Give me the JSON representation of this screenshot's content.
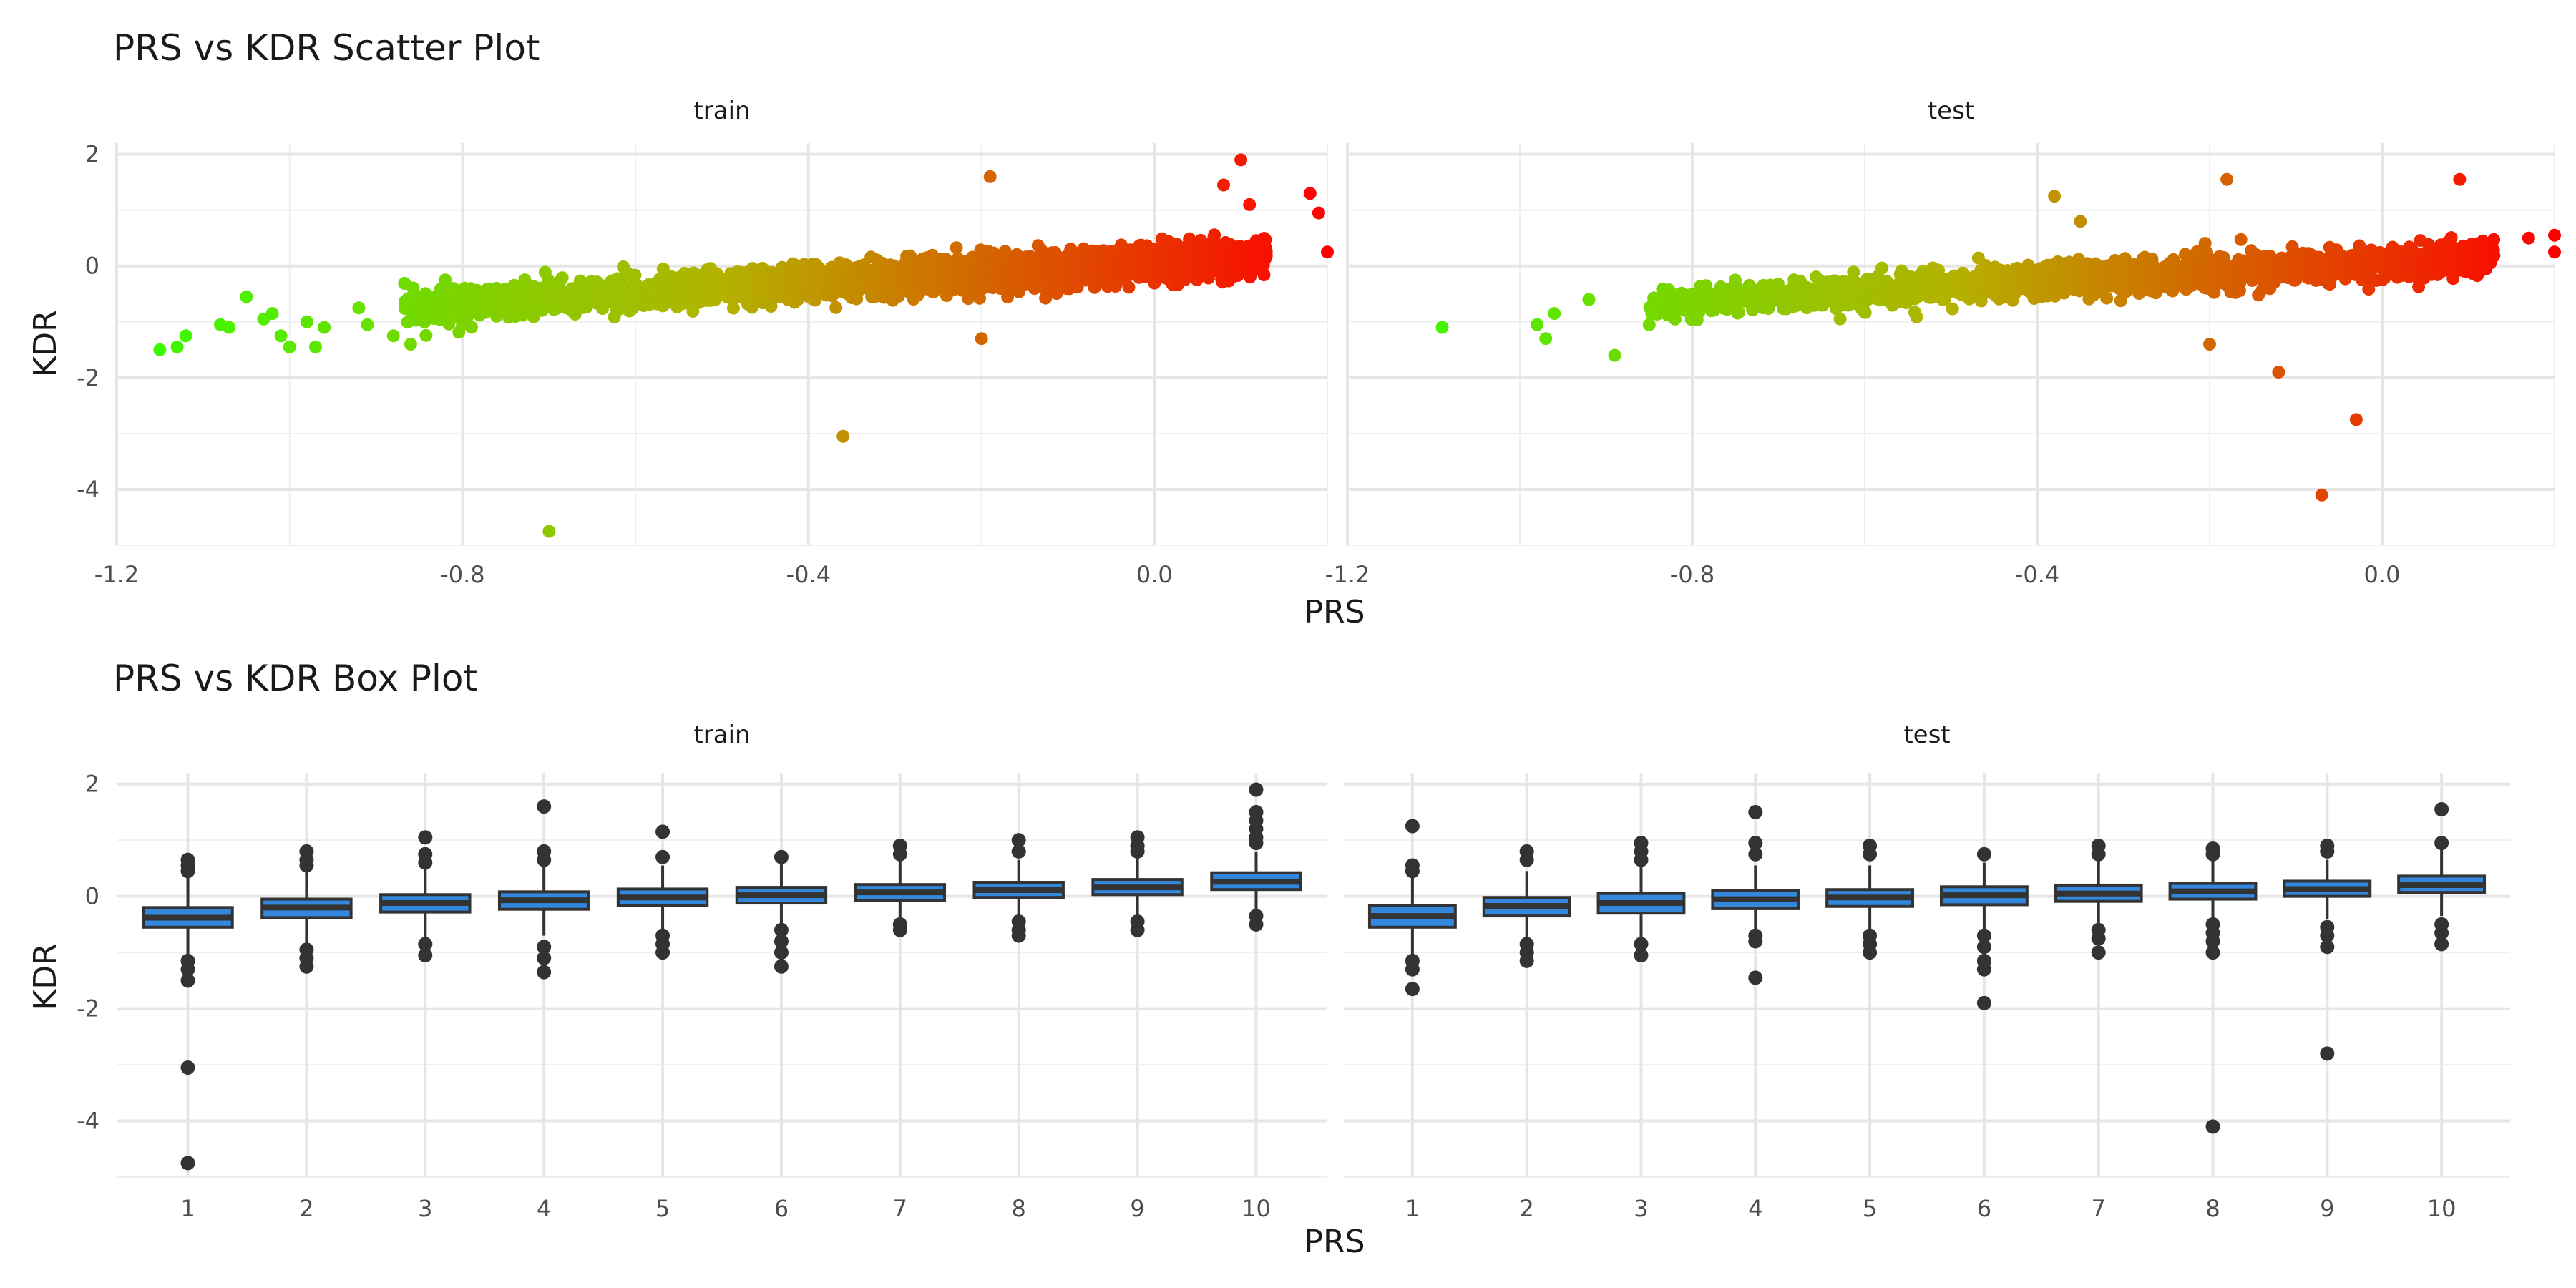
{
  "chart_data": [
    {
      "type": "scatter",
      "title": "PRS vs KDR Scatter Plot",
      "xlabel": "PRS",
      "ylabel": "KDR",
      "xlim": [
        -1.2,
        0.2
      ],
      "ylim": [
        -5,
        2.2
      ],
      "xticks": [
        -1.2,
        -0.8,
        -0.4,
        0.0
      ],
      "xtick_labels": [
        "-1.2",
        "-0.8",
        "-0.4",
        "0.0"
      ],
      "yticks": [
        -4,
        -2,
        0,
        2
      ],
      "ytick_labels": [
        "-4",
        "-2",
        "0",
        "2"
      ],
      "grid": true,
      "legend": "none",
      "color_scale": {
        "low": "#33ff00",
        "mid": "#b3b300",
        "high": "#ff0000",
        "variable": "PRS"
      },
      "panels": [
        {
          "name": "train",
          "cloud": {
            "x_range": [
              -0.87,
              0.13
            ],
            "slope": 0.9,
            "intercept": 0.05,
            "spread": 0.28,
            "n": 2400
          },
          "outliers": [
            {
              "x": -1.15,
              "y": -1.5
            },
            {
              "x": -1.13,
              "y": -1.45
            },
            {
              "x": -1.12,
              "y": -1.25
            },
            {
              "x": -1.08,
              "y": -1.05
            },
            {
              "x": -1.07,
              "y": -1.1
            },
            {
              "x": -1.05,
              "y": -0.55
            },
            {
              "x": -1.03,
              "y": -0.95
            },
            {
              "x": -1.02,
              "y": -0.85
            },
            {
              "x": -1.01,
              "y": -1.25
            },
            {
              "x": -1.0,
              "y": -1.45
            },
            {
              "x": -0.98,
              "y": -1.0
            },
            {
              "x": -0.97,
              "y": -1.45
            },
            {
              "x": -0.96,
              "y": -1.1
            },
            {
              "x": -0.92,
              "y": -0.75
            },
            {
              "x": -0.91,
              "y": -1.05
            },
            {
              "x": -0.88,
              "y": -1.25
            },
            {
              "x": -0.86,
              "y": -1.4
            },
            {
              "x": -0.82,
              "y": -0.25
            },
            {
              "x": -0.7,
              "y": -4.75
            },
            {
              "x": -0.36,
              "y": -3.05
            },
            {
              "x": -0.19,
              "y": 1.6
            },
            {
              "x": -0.2,
              "y": -1.3
            },
            {
              "x": 0.08,
              "y": 1.45
            },
            {
              "x": 0.1,
              "y": 1.9
            },
            {
              "x": 0.11,
              "y": 1.1
            },
            {
              "x": 0.18,
              "y": 1.3
            },
            {
              "x": 0.19,
              "y": 0.95
            },
            {
              "x": 0.2,
              "y": 0.25
            }
          ]
        },
        {
          "name": "test",
          "cloud": {
            "x_range": [
              -0.85,
              0.13
            ],
            "slope": 0.85,
            "intercept": 0.05,
            "spread": 0.27,
            "n": 1600
          },
          "outliers": [
            {
              "x": -1.09,
              "y": -1.1
            },
            {
              "x": -0.98,
              "y": -1.05
            },
            {
              "x": -0.97,
              "y": -1.3
            },
            {
              "x": -0.96,
              "y": -0.85
            },
            {
              "x": -0.92,
              "y": -0.6
            },
            {
              "x": -0.89,
              "y": -1.6
            },
            {
              "x": -0.85,
              "y": -1.05
            },
            {
              "x": -0.82,
              "y": -0.95
            },
            {
              "x": -0.38,
              "y": 1.25
            },
            {
              "x": -0.35,
              "y": 0.8
            },
            {
              "x": -0.18,
              "y": 1.55
            },
            {
              "x": -0.2,
              "y": -1.4
            },
            {
              "x": -0.12,
              "y": -1.9
            },
            {
              "x": -0.03,
              "y": -2.75
            },
            {
              "x": -0.07,
              "y": -4.1
            },
            {
              "x": 0.09,
              "y": 1.55
            },
            {
              "x": 0.17,
              "y": 0.5
            },
            {
              "x": 0.2,
              "y": 0.55
            },
            {
              "x": 0.2,
              "y": 0.25
            }
          ]
        }
      ]
    },
    {
      "type": "box",
      "title": "PRS vs KDR Box Plot",
      "xlabel": "PRS",
      "ylabel": "KDR",
      "categories": [
        "1",
        "2",
        "3",
        "4",
        "5",
        "6",
        "7",
        "8",
        "9",
        "10"
      ],
      "ylim": [
        -5,
        2.2
      ],
      "yticks": [
        -4,
        -2,
        0,
        2
      ],
      "ytick_labels": [
        "-4",
        "-2",
        "0",
        "2"
      ],
      "grid": true,
      "box_fill": "#3388dd",
      "box_stroke": "#333333",
      "panels": [
        {
          "name": "train",
          "boxes": [
            {
              "category": "1",
              "q1": -0.55,
              "median": -0.38,
              "q3": -0.2,
              "whisker_low": -1.05,
              "whisker_high": 0.35,
              "outliers": [
                0.65,
                0.55,
                0.45,
                -1.15,
                -1.3,
                -1.5,
                -3.05,
                -4.75
              ]
            },
            {
              "category": "2",
              "q1": -0.38,
              "median": -0.2,
              "q3": -0.05,
              "whisker_low": -0.85,
              "whisker_high": 0.45,
              "outliers": [
                0.8,
                0.65,
                0.55,
                -0.95,
                -1.1,
                -1.25
              ]
            },
            {
              "category": "3",
              "q1": -0.28,
              "median": -0.12,
              "q3": 0.03,
              "whisker_low": -0.75,
              "whisker_high": 0.5,
              "outliers": [
                1.05,
                0.75,
                0.6,
                -0.85,
                -1.05
              ]
            },
            {
              "category": "4",
              "q1": -0.23,
              "median": -0.07,
              "q3": 0.08,
              "whisker_low": -0.7,
              "whisker_high": 0.55,
              "outliers": [
                1.6,
                0.8,
                0.65,
                -0.9,
                -1.1,
                -1.35
              ]
            },
            {
              "category": "5",
              "q1": -0.17,
              "median": -0.02,
              "q3": 0.13,
              "whisker_low": -0.6,
              "whisker_high": 0.55,
              "outliers": [
                1.15,
                0.7,
                -0.7,
                -0.85,
                -1.0
              ]
            },
            {
              "category": "6",
              "q1": -0.12,
              "median": 0.02,
              "q3": 0.16,
              "whisker_low": -0.55,
              "whisker_high": 0.6,
              "outliers": [
                0.7,
                -0.6,
                -0.8,
                -1.0,
                -1.25
              ]
            },
            {
              "category": "7",
              "q1": -0.07,
              "median": 0.07,
              "q3": 0.21,
              "whisker_low": -0.45,
              "whisker_high": 0.65,
              "outliers": [
                0.9,
                0.75,
                -0.5,
                -0.6
              ]
            },
            {
              "category": "8",
              "q1": -0.02,
              "median": 0.11,
              "q3": 0.25,
              "whisker_low": -0.4,
              "whisker_high": 0.65,
              "outliers": [
                1.0,
                0.8,
                -0.45,
                -0.6,
                -0.7
              ]
            },
            {
              "category": "9",
              "q1": 0.03,
              "median": 0.16,
              "q3": 0.3,
              "whisker_low": -0.35,
              "whisker_high": 0.7,
              "outliers": [
                1.05,
                0.9,
                0.8,
                -0.45,
                -0.6
              ]
            },
            {
              "category": "10",
              "q1": 0.12,
              "median": 0.26,
              "q3": 0.42,
              "whisker_low": -0.25,
              "whisker_high": 0.8,
              "outliers": [
                1.9,
                1.5,
                1.35,
                1.2,
                1.05,
                0.95,
                -0.35,
                -0.5
              ]
            }
          ]
        },
        {
          "name": "test",
          "boxes": [
            {
              "category": "1",
              "q1": -0.55,
              "median": -0.35,
              "q3": -0.17,
              "whisker_low": -1.05,
              "whisker_high": 0.4,
              "outliers": [
                1.25,
                0.55,
                0.45,
                -1.15,
                -1.3,
                -1.65
              ]
            },
            {
              "category": "2",
              "q1": -0.35,
              "median": -0.17,
              "q3": -0.02,
              "whisker_low": -0.8,
              "whisker_high": 0.45,
              "outliers": [
                0.8,
                0.65,
                -0.85,
                -1.0,
                -1.15
              ]
            },
            {
              "category": "3",
              "q1": -0.3,
              "median": -0.12,
              "q3": 0.05,
              "whisker_low": -0.8,
              "whisker_high": 0.55,
              "outliers": [
                0.95,
                0.8,
                0.65,
                -0.85,
                -1.05
              ]
            },
            {
              "category": "4",
              "q1": -0.22,
              "median": -0.05,
              "q3": 0.11,
              "whisker_low": -0.6,
              "whisker_high": 0.55,
              "outliers": [
                1.5,
                0.95,
                0.75,
                -0.7,
                -0.8,
                -1.45
              ]
            },
            {
              "category": "5",
              "q1": -0.18,
              "median": -0.02,
              "q3": 0.12,
              "whisker_low": -0.6,
              "whisker_high": 0.55,
              "outliers": [
                0.9,
                0.75,
                -0.7,
                -0.85,
                -1.0
              ]
            },
            {
              "category": "6",
              "q1": -0.15,
              "median": 0.02,
              "q3": 0.17,
              "whisker_low": -0.6,
              "whisker_high": 0.6,
              "outliers": [
                0.75,
                -0.7,
                -0.9,
                -1.15,
                -1.3,
                -1.9
              ]
            },
            {
              "category": "7",
              "q1": -0.09,
              "median": 0.05,
              "q3": 0.2,
              "whisker_low": -0.5,
              "whisker_high": 0.65,
              "outliers": [
                0.9,
                0.75,
                -0.6,
                -0.75,
                -1.0
              ]
            },
            {
              "category": "8",
              "q1": -0.05,
              "median": 0.09,
              "q3": 0.23,
              "whisker_low": -0.45,
              "whisker_high": 0.65,
              "outliers": [
                0.85,
                0.75,
                -0.5,
                -0.65,
                -0.8,
                -1.0,
                -4.1
              ]
            },
            {
              "category": "9",
              "q1": 0.0,
              "median": 0.13,
              "q3": 0.27,
              "whisker_low": -0.4,
              "whisker_high": 0.65,
              "outliers": [
                0.9,
                0.8,
                -0.55,
                -0.7,
                -0.9,
                -2.8
              ]
            },
            {
              "category": "10",
              "q1": 0.07,
              "median": 0.2,
              "q3": 0.36,
              "whisker_low": -0.35,
              "whisker_high": 0.85,
              "outliers": [
                1.55,
                0.95,
                -0.5,
                -0.65,
                -0.85
              ]
            }
          ]
        }
      ]
    }
  ]
}
